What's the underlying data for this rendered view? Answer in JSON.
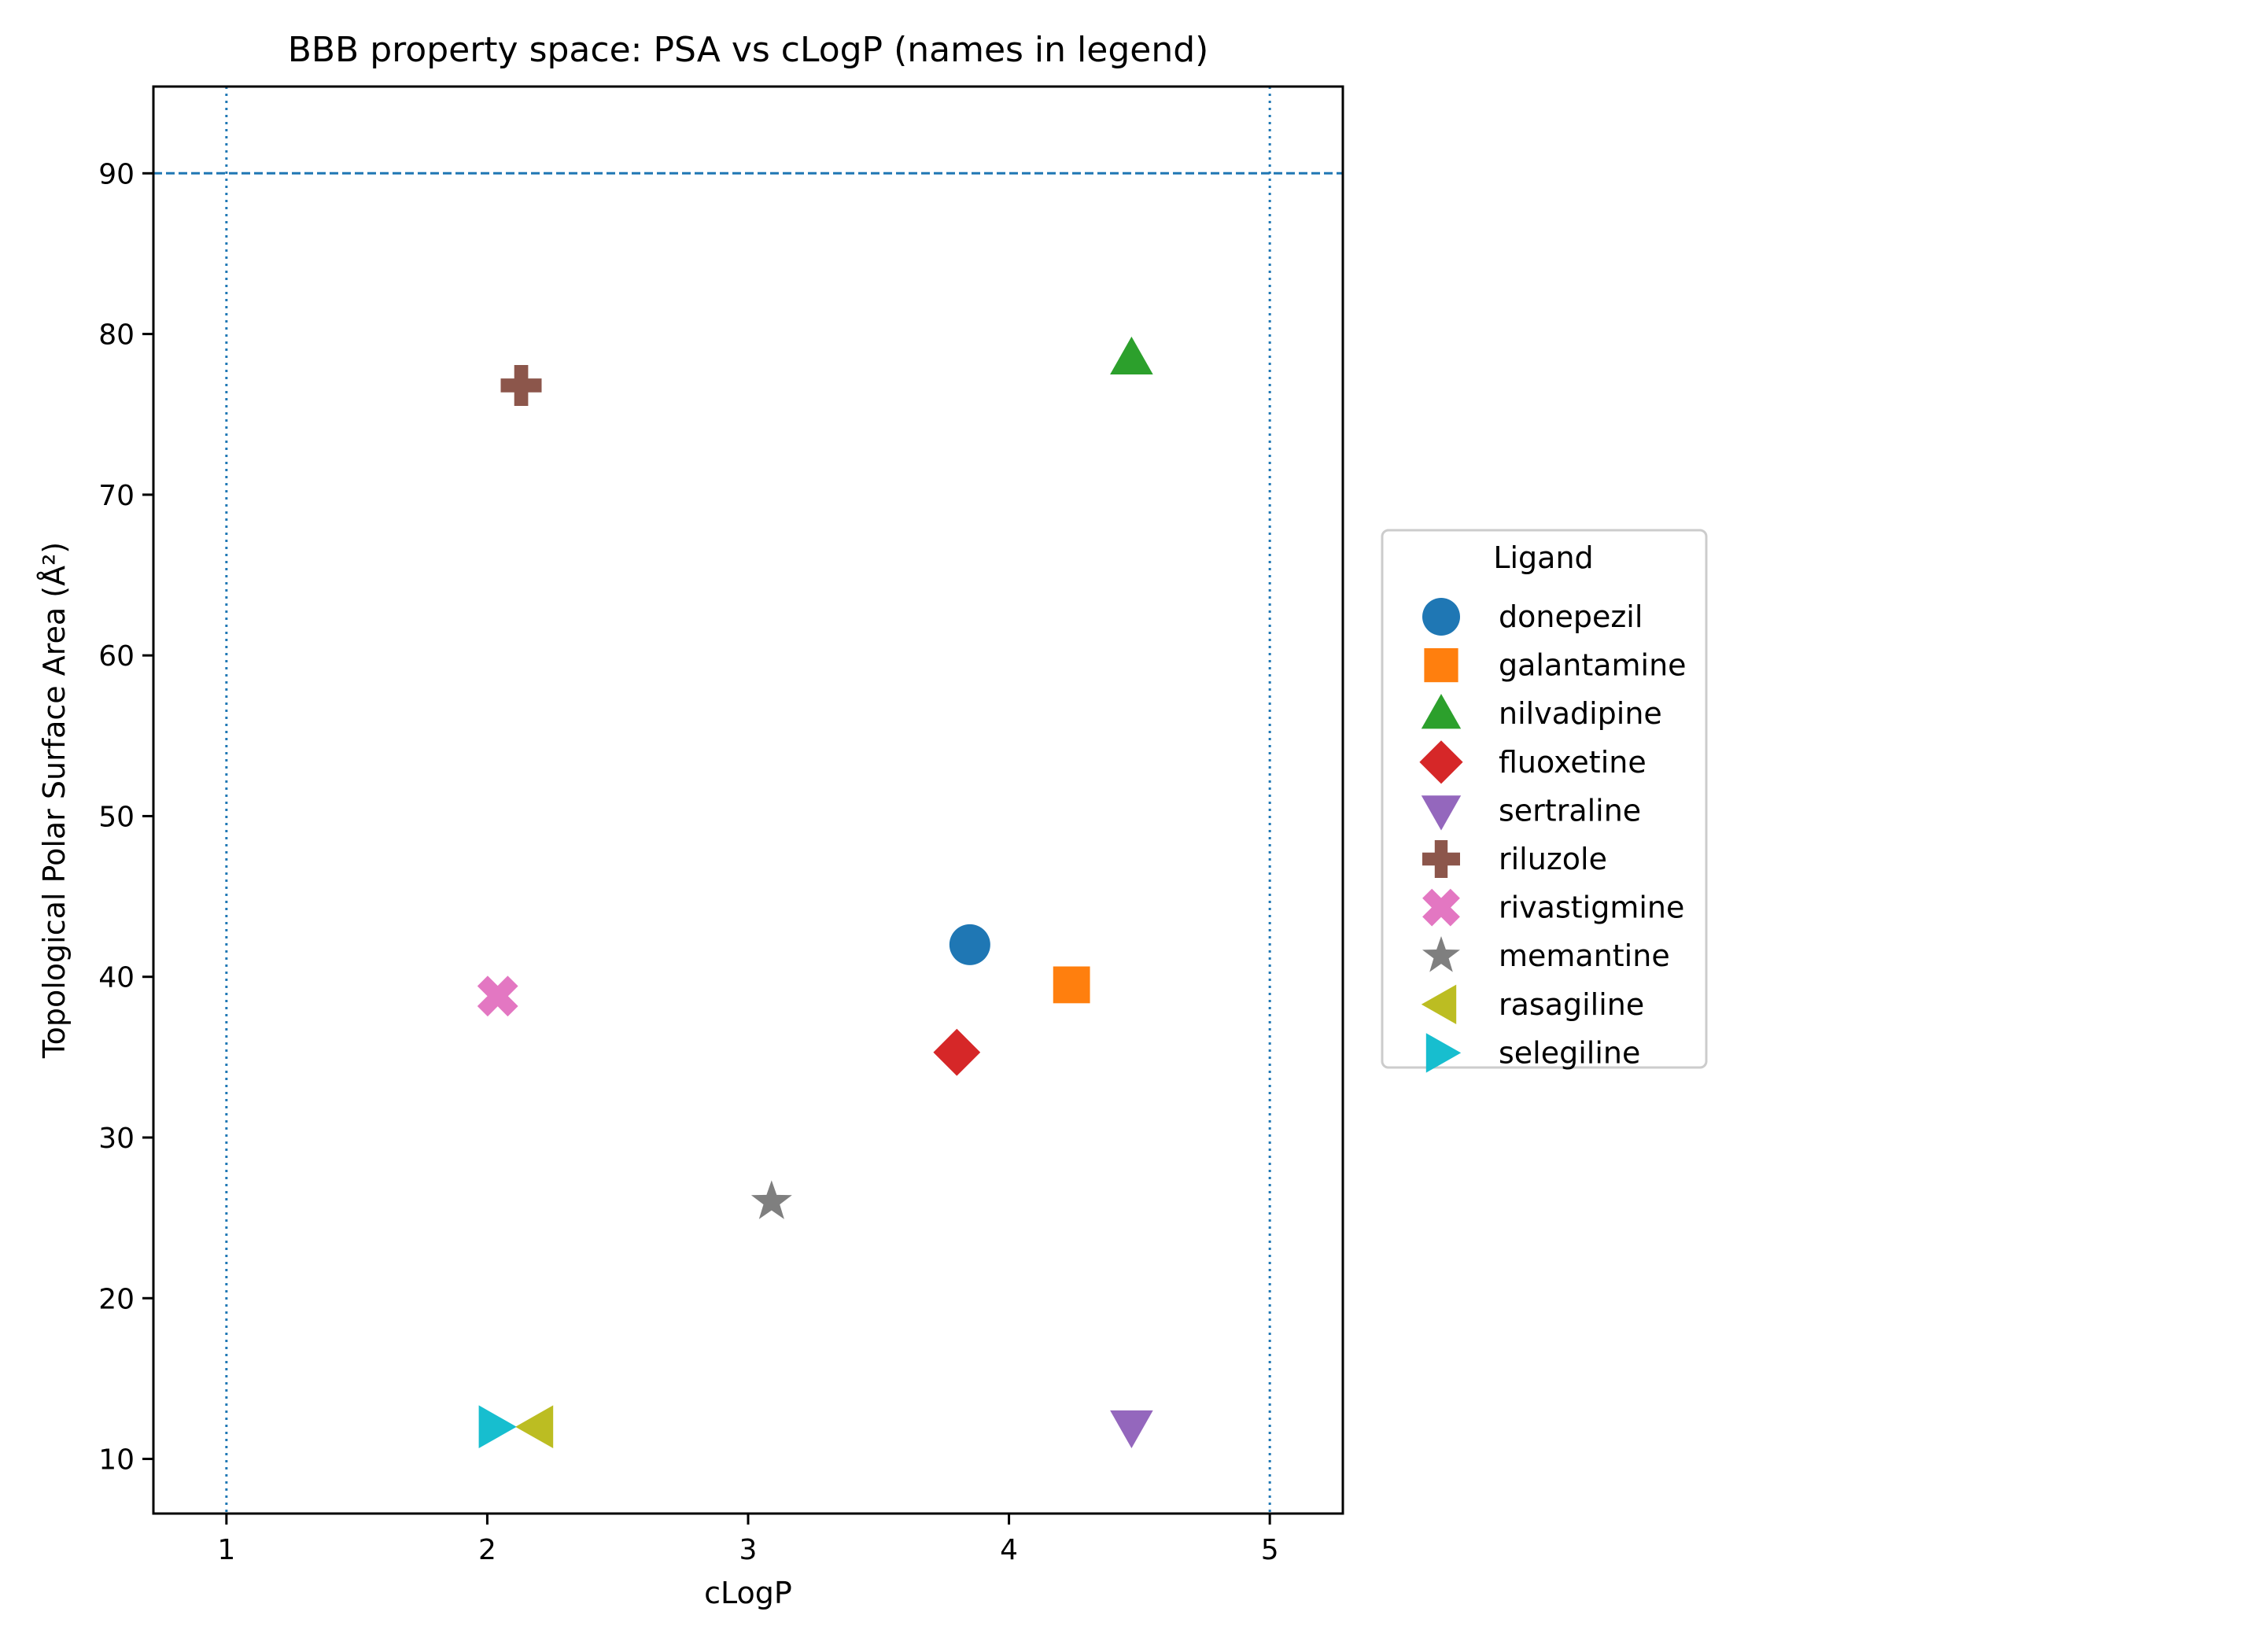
{
  "chart_data": {
    "type": "scatter",
    "title": "BBB property space: PSA vs cLogP (names in legend)",
    "xlabel": "cLogP",
    "ylabel": "Topological Polar Surface Area (Å²)",
    "xlim": [
      0.72,
      5.28
    ],
    "ylim": [
      6.6,
      95.4
    ],
    "xticks": [
      1,
      2,
      3,
      4,
      5
    ],
    "yticks": [
      10,
      20,
      30,
      40,
      50,
      60,
      70,
      80,
      90
    ],
    "grid": false,
    "reference_lines": [
      {
        "axis": "y",
        "value": 90,
        "style": "dashed",
        "color": "#1f77b4"
      },
      {
        "axis": "x",
        "value": 1,
        "style": "dotted",
        "color": "#1f77b4"
      },
      {
        "axis": "x",
        "value": 5,
        "style": "dotted",
        "color": "#1f77b4"
      }
    ],
    "legend": {
      "title": "Ligand",
      "placement": "outside-right"
    },
    "series": [
      {
        "name": "donepezil",
        "marker": "circle",
        "color": "#1f77b4",
        "x": 3.85,
        "y": 42.0
      },
      {
        "name": "galantamine",
        "marker": "square",
        "color": "#ff7f0e",
        "x": 4.24,
        "y": 39.5
      },
      {
        "name": "nilvadipine",
        "marker": "triangle-up",
        "color": "#2ca02c",
        "x": 4.47,
        "y": 78.5
      },
      {
        "name": "fluoxetine",
        "marker": "diamond",
        "color": "#d62728",
        "x": 3.8,
        "y": 35.3
      },
      {
        "name": "sertraline",
        "marker": "triangle-down",
        "color": "#9467bd",
        "x": 4.47,
        "y": 12.0
      },
      {
        "name": "riluzole",
        "marker": "plus",
        "color": "#8c564b",
        "x": 2.13,
        "y": 76.8
      },
      {
        "name": "rivastigmine",
        "marker": "x",
        "color": "#e377c2",
        "x": 2.04,
        "y": 38.8
      },
      {
        "name": "memantine",
        "marker": "star",
        "color": "#7f7f7f",
        "x": 3.09,
        "y": 26.0
      },
      {
        "name": "rasagiline",
        "marker": "triangle-left",
        "color": "#bcbd22",
        "x": 2.19,
        "y": 12.0
      },
      {
        "name": "selegiline",
        "marker": "triangle-right",
        "color": "#17becf",
        "x": 2.03,
        "y": 12.0
      }
    ]
  }
}
